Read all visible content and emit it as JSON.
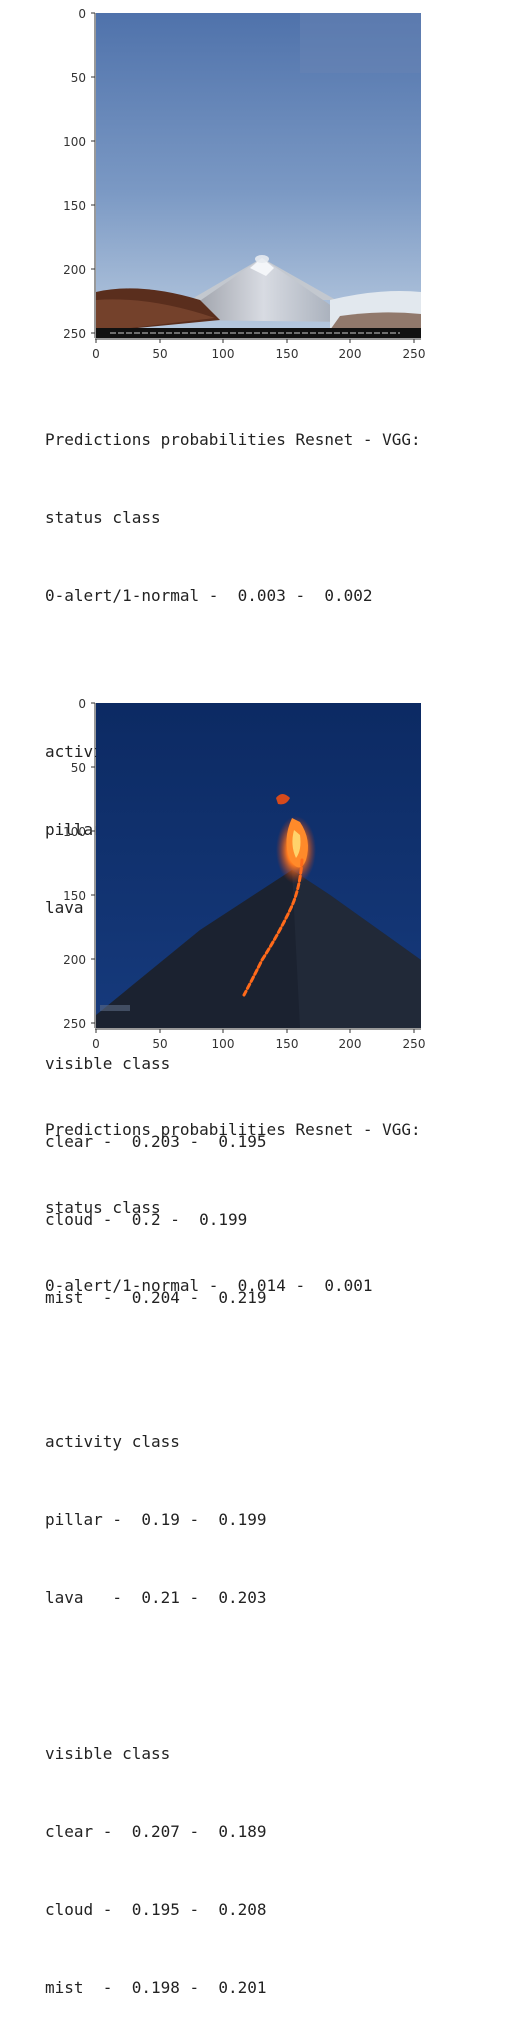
{
  "ticks": [
    "0",
    "50",
    "100",
    "150",
    "200",
    "250"
  ],
  "outputs": [
    {
      "lines": [
        "Predictions probabilities Resnet - VGG:",
        "status class",
        "0-alert/1-normal -  0.003 -  0.002",
        "",
        "activity class",
        "pillar -  0.192 -  0.186",
        "lava   -  0.201 -  0.201",
        "",
        "visible class",
        "clear -  0.203 -  0.195",
        "cloud -  0.2 -  0.199",
        "mist  -  0.204 -  0.219"
      ]
    },
    {
      "lines": [
        "Predictions probabilities Resnet - VGG:",
        "status class",
        "0-alert/1-normal -  0.014 -  0.001",
        "",
        "activity class",
        "pillar -  0.19 -  0.199",
        "lava   -  0.21 -  0.203",
        "",
        "visible class",
        "clear -  0.207 -  0.189",
        "cloud -  0.195 -  0.208",
        "mist  -  0.198 -  0.201"
      ]
    }
  ]
}
